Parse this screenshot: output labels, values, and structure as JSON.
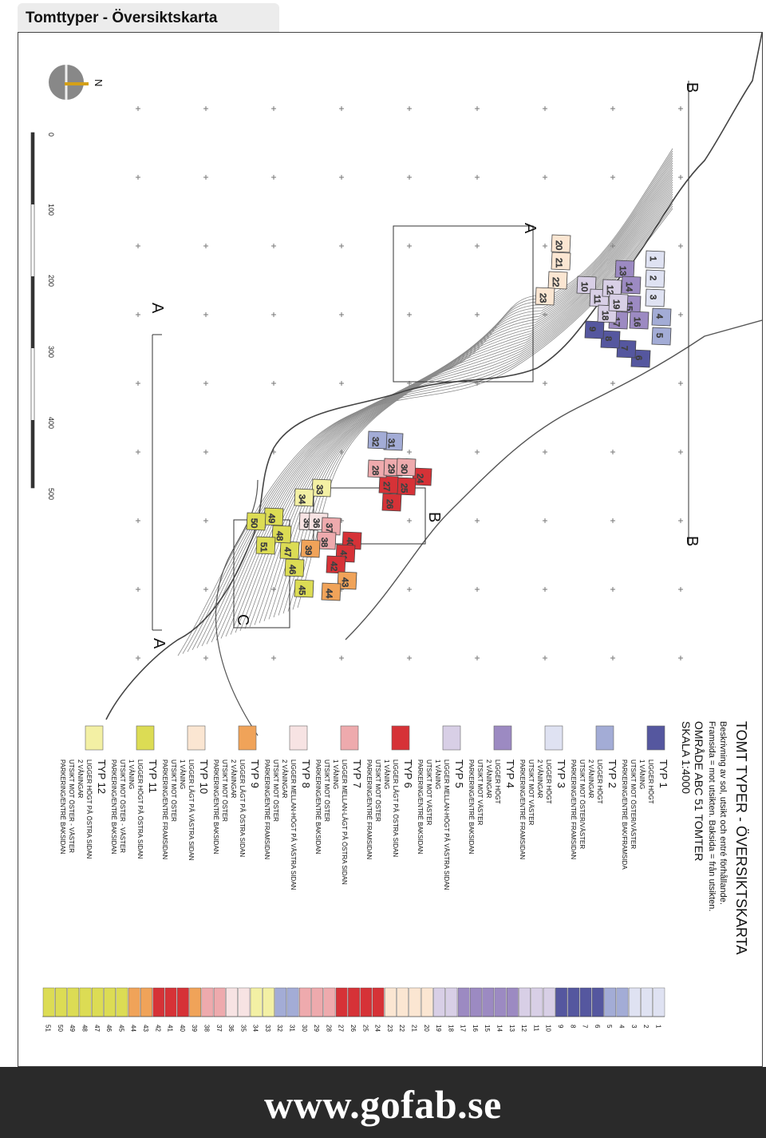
{
  "header": {
    "title": "Tomttyper - Översiktskarta"
  },
  "legend": {
    "heading": "TOMT TYPER - ÖVERSIKTSKARTA",
    "desc1": "Beskrivning av sol, utsikt och entré förhållande.",
    "desc2": "Framsida = mot utsikten. Baksida = från utsikten.",
    "area": "OMRÅDE ABC  51 TOMTER",
    "scale": "SKALA 1:4000",
    "types": [
      {
        "name": "TYP 1",
        "color": "#55579f",
        "lines": [
          "LIGGER HÖGT",
          "1 VÅNING",
          "UTSIKT MOT ÖSTER/VÄSTER",
          "PARKERING/ENTRÉ BAK/FRAMSIDA"
        ]
      },
      {
        "name": "TYP 2",
        "color": "#a3acd6",
        "lines": [
          "LIGGER HÖGT",
          "2 VÅNINGAR",
          "UTSIKT MOT ÖSTER/VÄSTER",
          "PARKERING/ENTRÉ FRAMSIDAN"
        ]
      },
      {
        "name": "TYP 3",
        "color": "#dfe2f2",
        "lines": [
          "LIGGER HÖGT",
          "2 VÅNINGAR",
          "UTSIKT MOT VÄSTER",
          "PARKERING/ENTRÉ FRAMSIDAN"
        ]
      },
      {
        "name": "TYP 4",
        "color": "#9c8ac2",
        "lines": [
          "LIGGER HÖGT",
          "2 VÅNINGAR",
          "UTSIKT MOT VÄSTER",
          "PARKERING/ENTRÉ BAKSIDAN"
        ]
      },
      {
        "name": "TYP 5",
        "color": "#d8cfe6",
        "lines": [
          "LIGGER MELLAN-HÖGT PÅ VÄSTRA SIDAN",
          "1 VÅNING",
          "UTSIKT MOT VÄSTER",
          "PARKERING/ENTRÉ BAKSIDAN"
        ]
      },
      {
        "name": "TYP 6",
        "color": "#d63237",
        "lines": [
          "LIGGER LÅGT PÅ ÖSTRA SIDAN",
          "1 VÅNING",
          "UTSIKT MOT ÖSTER",
          "PARKERING/ENTRÉ FRAMSIDAN"
        ]
      },
      {
        "name": "TYP 7",
        "color": "#eeaaad",
        "lines": [
          "LIGGER MELLAN-LÅGT PÅ ÖSTRA SIDAN",
          "1 VÅNING",
          "UTSIKT MOT ÖSTER",
          "PARKERING/ENTRÉ BAKSIDAN"
        ]
      },
      {
        "name": "TYP 8",
        "color": "#f7e3e3",
        "lines": [
          "LIGGER MELLAN-HÖGT PÅ VÄSTRA SIDAN",
          "2 VÅNINGAR",
          "UTSIKT MOT ÖSTER",
          "PARKERING/ENTRÉ FRAMSIDAN"
        ]
      },
      {
        "name": "TYP 9",
        "color": "#f0a359",
        "lines": [
          "LIGGER LÅGT PÅ ÖSTRA SIDAN",
          "2 VÅNINGAR",
          "UTSIKT MOT ÖSTER",
          "PARKERING/ENTRÉ BAKSIDAN"
        ]
      },
      {
        "name": "TYP 10",
        "color": "#fbe6d2",
        "lines": [
          "LIGGER LÅGT PÅ VÄSTRA SIDAN",
          "1 VÅNING",
          "UTSIKT MOT ÖSTER",
          "PARKERING/ENTRÉ FRAMSIDAN"
        ]
      },
      {
        "name": "TYP 11",
        "color": "#dcdc54",
        "lines": [
          "LIGGER HÖGT PÅ ÖSTRA SIDAN",
          "1 VÅNING",
          "UTSIKT MOT ÖSTER - VÄSTER",
          "PARKERING/ENTRÉ BAKSIDAN"
        ]
      },
      {
        "name": "TYP 12",
        "color": "#f3f0a4",
        "lines": [
          "LIGGER HÖGT PÅ ÖSTRA SIDAN",
          "2 VÅNINGAR",
          "UTSIKT MOT ÖSTER - VÄSTER",
          "PARKERING/ENTRÉ BAKSIDAN"
        ]
      }
    ]
  },
  "plot_numbers": [
    "1",
    "2",
    "3",
    "4",
    "5",
    "6",
    "7",
    "8",
    "9",
    "10",
    "11",
    "12",
    "13",
    "14",
    "15",
    "16",
    "17",
    "18",
    "19",
    "20",
    "21",
    "22",
    "23",
    "24",
    "25",
    "26",
    "27",
    "28",
    "29",
    "30",
    "31",
    "32",
    "33",
    "34",
    "35",
    "36",
    "37",
    "38",
    "39",
    "40",
    "41",
    "42",
    "43",
    "44",
    "45",
    "46",
    "47",
    "48",
    "49",
    "50",
    "51"
  ],
  "plots": [
    {
      "n": "1",
      "t": 3
    },
    {
      "n": "2",
      "t": 3
    },
    {
      "n": "3",
      "t": 3
    },
    {
      "n": "4",
      "t": 2
    },
    {
      "n": "5",
      "t": 2
    },
    {
      "n": "6",
      "t": 1
    },
    {
      "n": "7",
      "t": 1
    },
    {
      "n": "8",
      "t": 1
    },
    {
      "n": "9",
      "t": 1
    },
    {
      "n": "10",
      "t": 5
    },
    {
      "n": "11",
      "t": 5
    },
    {
      "n": "12",
      "t": 5
    },
    {
      "n": "13",
      "t": 4
    },
    {
      "n": "14",
      "t": 4
    },
    {
      "n": "15",
      "t": 4
    },
    {
      "n": "16",
      "t": 4
    },
    {
      "n": "17",
      "t": 4
    },
    {
      "n": "18",
      "t": 5
    },
    {
      "n": "19",
      "t": 5
    },
    {
      "n": "20",
      "t": 10
    },
    {
      "n": "21",
      "t": 10
    },
    {
      "n": "22",
      "t": 10
    },
    {
      "n": "23",
      "t": 10
    },
    {
      "n": "24",
      "t": 6
    },
    {
      "n": "25",
      "t": 6
    },
    {
      "n": "26",
      "t": 6
    },
    {
      "n": "27",
      "t": 6
    },
    {
      "n": "28",
      "t": 7
    },
    {
      "n": "29",
      "t": 7
    },
    {
      "n": "30",
      "t": 7
    },
    {
      "n": "31",
      "t": 2
    },
    {
      "n": "32",
      "t": 2
    },
    {
      "n": "33",
      "t": 12
    },
    {
      "n": "34",
      "t": 12
    },
    {
      "n": "35",
      "t": 8
    },
    {
      "n": "36",
      "t": 8
    },
    {
      "n": "37",
      "t": 7
    },
    {
      "n": "38",
      "t": 7
    },
    {
      "n": "39",
      "t": 9
    },
    {
      "n": "40",
      "t": 6
    },
    {
      "n": "41",
      "t": 6
    },
    {
      "n": "42",
      "t": 6
    },
    {
      "n": "43",
      "t": 9
    },
    {
      "n": "44",
      "t": 9
    },
    {
      "n": "45",
      "t": 11
    },
    {
      "n": "46",
      "t": 11
    },
    {
      "n": "47",
      "t": 11
    },
    {
      "n": "48",
      "t": 11
    },
    {
      "n": "49",
      "t": 11
    },
    {
      "n": "50",
      "t": 11
    },
    {
      "n": "51",
      "t": 11
    }
  ],
  "map_labels": {
    "section_a": "A",
    "section_b": "B",
    "section_c": "C",
    "north": "N"
  },
  "scalebar": {
    "ticks": [
      "0",
      "100",
      "200",
      "300",
      "400",
      "500"
    ]
  },
  "footer": {
    "url": "www.gofab.se"
  }
}
